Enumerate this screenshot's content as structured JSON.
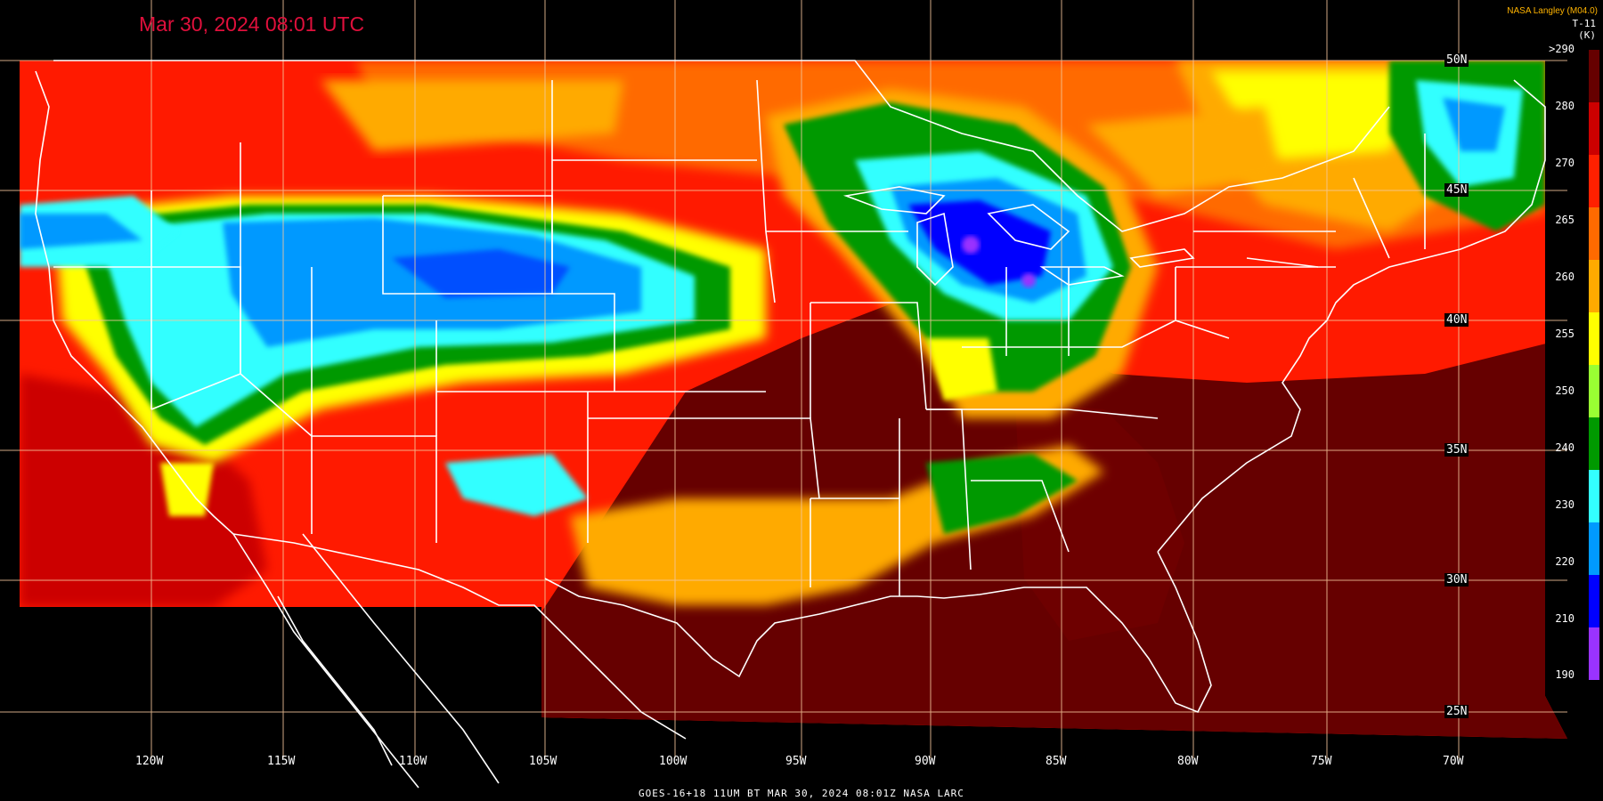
{
  "timestamp": "Mar 30, 2024 08:01 UTC",
  "producer": "NASA Langley (M04.0)",
  "product_code": "T-11",
  "units": "(K)",
  "footer": "GOES-16+18   11UM BT   MAR 30, 2024 08:01Z   NASA LARC",
  "legend": {
    "labels": [
      ">290",
      "280",
      "270",
      "265",
      "260",
      "255",
      "250",
      "240",
      "230",
      "220",
      "210",
      "190"
    ],
    "colors": [
      "#660000",
      "#cc0000",
      "#ff2000",
      "#ff6a00",
      "#ffaa00",
      "#ffff00",
      "#99ff33",
      "#009900",
      "#33ffff",
      "#0099ff",
      "#0000ff",
      "#9933ff"
    ]
  },
  "longitude_labels": [
    "120W",
    "115W",
    "110W",
    "105W",
    "100W",
    "95W",
    "90W",
    "85W",
    "80W",
    "75W",
    "70W"
  ],
  "latitude_labels": [
    "50N",
    "45N",
    "40N",
    "35N",
    "30N",
    "25N"
  ],
  "colors": {
    "timestamp": "#e0103c",
    "producer": "#ffb400",
    "gridline": "#f5c79a",
    "coastline": "#ffffff"
  }
}
